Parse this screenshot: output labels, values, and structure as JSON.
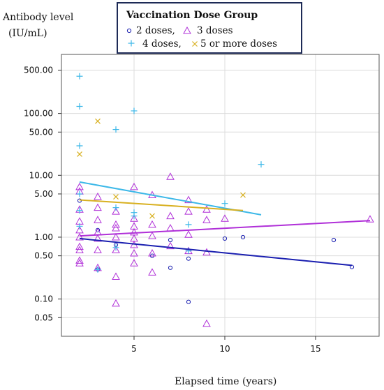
{
  "chart_data": {
    "type": "scatter",
    "ylabel_line1": "Antibody level",
    "ylabel_line2": "(IU/mL)",
    "xlabel": "Elapsed time (years)",
    "xlim": [
      1,
      18.5
    ],
    "ylim": [
      0.025,
      900
    ],
    "yscale": "log",
    "x_ticks": [
      5,
      10,
      15
    ],
    "x_tick_labels": [
      "5",
      "10",
      "15"
    ],
    "y_ticks": [
      0.05,
      0.1,
      0.5,
      1,
      5,
      10,
      50,
      100,
      500
    ],
    "y_tick_labels": [
      "0.05",
      "0.10",
      "0.50",
      "1.00",
      "5.00",
      "10.00",
      "50.00",
      "100.00",
      "500.00"
    ],
    "grid": true,
    "legend": {
      "title": "Vaccination Dose Group",
      "placement": "top",
      "entries": [
        {
          "label": "2 doses,",
          "marker": "circle",
          "color": "#1a1fb0"
        },
        {
          "label": "3 doses",
          "marker": "triangle",
          "color": "#b030d8"
        },
        {
          "label": "4 doses,",
          "marker": "plus",
          "color": "#3cb8e8"
        },
        {
          "label": "5 or more doses",
          "marker": "x",
          "color": "#d8b020"
        }
      ]
    },
    "series": [
      {
        "name": "2 doses",
        "marker": "circle",
        "color": "#1a1fb0",
        "points": [
          [
            2,
            3.9
          ],
          [
            3,
            1.3
          ],
          [
            3,
            0.3
          ],
          [
            4,
            0.75
          ],
          [
            6,
            0.5
          ],
          [
            7,
            0.9
          ],
          [
            7,
            0.32
          ],
          [
            8,
            0.45
          ],
          [
            8,
            0.09
          ],
          [
            10,
            0.95
          ],
          [
            11,
            1.0
          ],
          [
            16,
            0.9
          ],
          [
            17,
            0.33
          ]
        ],
        "trend": [
          [
            2,
            0.95
          ],
          [
            17,
            0.35
          ]
        ]
      },
      {
        "name": "3 doses",
        "marker": "triangle",
        "color": "#b030d8",
        "points": [
          [
            2,
            6.5
          ],
          [
            2,
            5.5
          ],
          [
            2,
            2.8
          ],
          [
            2,
            1.8
          ],
          [
            2,
            1.3
          ],
          [
            2,
            1.0
          ],
          [
            2,
            0.7
          ],
          [
            2,
            0.62
          ],
          [
            2,
            0.42
          ],
          [
            2,
            0.38
          ],
          [
            3,
            4.5
          ],
          [
            3,
            3.0
          ],
          [
            3,
            1.9
          ],
          [
            3,
            1.2
          ],
          [
            3,
            0.95
          ],
          [
            3,
            0.62
          ],
          [
            3,
            0.32
          ],
          [
            4,
            2.6
          ],
          [
            4,
            1.6
          ],
          [
            4,
            1.4
          ],
          [
            4,
            1.0
          ],
          [
            4,
            0.62
          ],
          [
            4,
            0.23
          ],
          [
            4,
            0.085
          ],
          [
            5,
            6.5
          ],
          [
            5,
            2.0
          ],
          [
            5,
            1.5
          ],
          [
            5,
            1.2
          ],
          [
            5,
            0.95
          ],
          [
            5,
            0.75
          ],
          [
            5,
            0.55
          ],
          [
            5,
            0.38
          ],
          [
            6,
            4.8
          ],
          [
            6,
            1.6
          ],
          [
            6,
            1.05
          ],
          [
            6,
            0.55
          ],
          [
            6,
            0.27
          ],
          [
            7,
            9.5
          ],
          [
            7,
            2.2
          ],
          [
            7,
            1.4
          ],
          [
            7,
            0.72
          ],
          [
            8,
            4.0
          ],
          [
            8,
            2.6
          ],
          [
            8,
            1.1
          ],
          [
            8,
            0.6
          ],
          [
            9,
            2.8
          ],
          [
            9,
            1.9
          ],
          [
            9,
            0.57
          ],
          [
            9,
            0.04
          ],
          [
            10,
            2.0
          ],
          [
            18,
            1.95
          ]
        ],
        "trend": [
          [
            2,
            1.05
          ],
          [
            18,
            1.85
          ]
        ]
      },
      {
        "name": "4 doses",
        "marker": "plus",
        "color": "#3cb8e8",
        "points": [
          [
            2,
            400
          ],
          [
            2,
            130
          ],
          [
            2,
            30
          ],
          [
            2,
            5.0
          ],
          [
            2,
            2.7
          ],
          [
            2,
            1.5
          ],
          [
            3,
            0.3
          ],
          [
            4,
            55
          ],
          [
            4,
            3.0
          ],
          [
            4,
            0.68
          ],
          [
            5,
            110
          ],
          [
            5,
            2.5
          ],
          [
            5,
            2.2
          ],
          [
            8,
            1.6
          ],
          [
            8,
            0.6
          ],
          [
            10,
            3.5
          ],
          [
            12,
            15
          ]
        ],
        "trend": [
          [
            2,
            7.8
          ],
          [
            12,
            2.3
          ]
        ]
      },
      {
        "name": "5 or more doses",
        "marker": "x",
        "color": "#d8b020",
        "points": [
          [
            2,
            22
          ],
          [
            3,
            75
          ],
          [
            4,
            4.5
          ],
          [
            6,
            2.2
          ],
          [
            11,
            4.8
          ]
        ],
        "trend": [
          [
            2,
            4.0
          ],
          [
            11,
            2.7
          ]
        ]
      }
    ]
  }
}
